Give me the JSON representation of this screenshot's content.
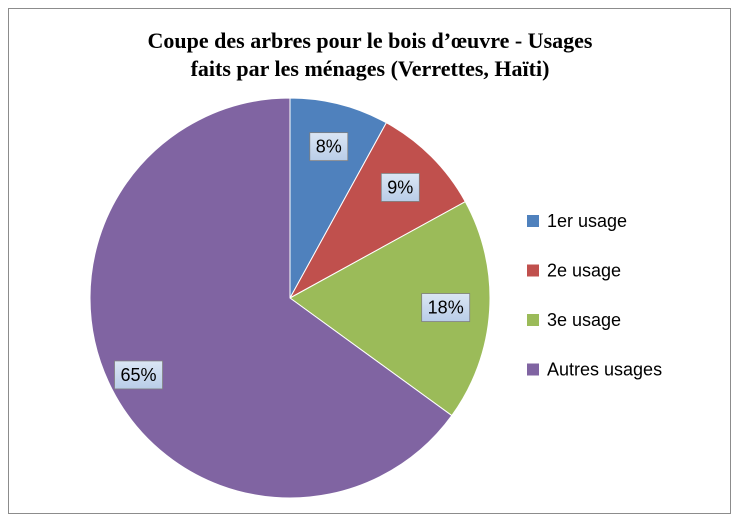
{
  "chart_data": {
    "type": "pie",
    "title": [
      "Coupe des arbres pour le bois d’œuvre - Usages",
      "faits par les ménages (Verrettes, Haïti)"
    ],
    "categories": [
      "1er usage",
      "2e usage",
      "3e usage",
      "Autres usages"
    ],
    "values": [
      8,
      9,
      18,
      65
    ],
    "value_labels": [
      "8%",
      "9%",
      "18%",
      "65%"
    ],
    "colors": [
      "#4f81bd",
      "#c0504d",
      "#9bbb59",
      "#8064a2"
    ],
    "legend": "right"
  }
}
